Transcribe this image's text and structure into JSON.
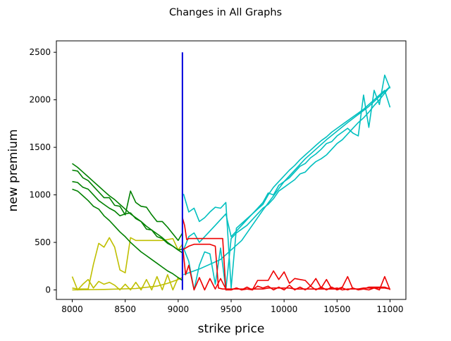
{
  "chart_data": {
    "type": "line",
    "title": "Changes in All Graphs",
    "xlabel": "strike price",
    "ylabel": "new premium",
    "xlim": [
      7850,
      11150
    ],
    "ylim": [
      -100,
      2620
    ],
    "xticks": [
      8000,
      8500,
      9000,
      9500,
      10000,
      10500,
      11000
    ],
    "yticks": [
      0,
      500,
      1000,
      1500,
      2000,
      2500
    ],
    "grid": false,
    "legend": "none",
    "vertical_line": {
      "x": 9040,
      "y_range": [
        0,
        2500
      ],
      "color": "#0000dd"
    },
    "series": [
      {
        "color": "#00bfbf",
        "x": [
          9050,
          9100,
          9150,
          9200,
          9250,
          9300,
          9350,
          9400,
          9450,
          9500,
          9550,
          9600,
          9650,
          9700,
          9750,
          9800,
          9850,
          9900,
          9950,
          10000,
          10050,
          10100,
          10150,
          10200,
          10250,
          10300,
          10350,
          10400,
          10450,
          10500,
          10550,
          10600,
          10650,
          10700,
          10750,
          10800,
          10850,
          10900,
          10950,
          11000
        ],
        "y": [
          1010,
          820,
          860,
          720,
          760,
          820,
          870,
          860,
          920,
          20,
          650,
          700,
          750,
          800,
          850,
          900,
          1000,
          1080,
          1140,
          1200,
          1260,
          1310,
          1370,
          1420,
          1470,
          1520,
          1570,
          1610,
          1660,
          1700,
          1740,
          1780,
          1820,
          1860,
          1900,
          1950,
          2000,
          2050,
          2100,
          1920
        ]
      },
      {
        "color": "#00bfbf",
        "x": [
          9050,
          9100,
          9150,
          9200,
          9250,
          9300,
          9350,
          9400,
          9450,
          9500,
          9550,
          9600,
          9650,
          9700,
          9750,
          9800,
          9850,
          9900,
          9950,
          10000,
          10050,
          10100,
          10150,
          10200,
          10250,
          10300,
          10350,
          10400,
          10450,
          10500,
          10550,
          10600,
          10650,
          10700,
          10750,
          10800,
          10850,
          10900,
          10950,
          11000
        ],
        "y": [
          420,
          560,
          600,
          500,
          560,
          620,
          680,
          740,
          800,
          560,
          620,
          680,
          740,
          800,
          860,
          920,
          1020,
          1000,
          1100,
          1140,
          1180,
          1240,
          1300,
          1330,
          1390,
          1430,
          1480,
          1540,
          1560,
          1620,
          1660,
          1700,
          1650,
          1620,
          2050,
          1710,
          2100,
          1950,
          2260,
          2120
        ]
      },
      {
        "color": "#00bfbf",
        "x": [
          9050,
          9100,
          9150,
          9200,
          9250,
          9300,
          9350,
          9400,
          9450,
          9500,
          9550,
          9600,
          9650,
          9700,
          9750,
          9800,
          9850,
          9900,
          9950,
          10000,
          10050,
          10100,
          10150,
          10200,
          10250,
          10300,
          10350,
          10400,
          10450,
          10500,
          10550,
          10600,
          10650,
          10700,
          10750,
          10800,
          10850,
          10900,
          10950,
          11000
        ],
        "y": [
          440,
          300,
          0,
          260,
          400,
          380,
          60,
          440,
          0,
          540,
          600,
          640,
          680,
          740,
          800,
          860,
          900,
          960,
          1040,
          1080,
          1120,
          1160,
          1220,
          1240,
          1300,
          1350,
          1380,
          1420,
          1480,
          1540,
          1580,
          1640,
          1700,
          1760,
          1810,
          1870,
          1940,
          2000,
          2070,
          2140
        ]
      },
      {
        "color": "#00bfbf",
        "x": [
          9050,
          9200,
          9400,
          9600,
          9800,
          10000,
          10200,
          10400,
          10600,
          10800,
          11000
        ],
        "y": [
          160,
          220,
          320,
          520,
          840,
          1140,
          1380,
          1580,
          1760,
          1930,
          2140
        ]
      },
      {
        "color": "#ee0000",
        "x": [
          9040,
          9060,
          9080,
          9100,
          9150,
          9200,
          9250,
          9300,
          9350,
          9400,
          9420,
          9450,
          9500,
          9550,
          9600,
          9650,
          9700,
          9750,
          9800,
          9850,
          9900,
          9950,
          10000,
          10050,
          10100,
          10150,
          10200,
          10250,
          10300,
          10350,
          10400,
          10450,
          10500,
          10550,
          10600,
          10650,
          10700,
          10750,
          10800,
          10850,
          10900,
          10950,
          11000
        ],
        "y": [
          760,
          680,
          530,
          540,
          540,
          540,
          540,
          540,
          540,
          540,
          540,
          0,
          0,
          20,
          0,
          10,
          0,
          100,
          100,
          100,
          200,
          110,
          190,
          70,
          120,
          110,
          100,
          40,
          120,
          20,
          110,
          10,
          20,
          0,
          10,
          10,
          10,
          20,
          20,
          20,
          20,
          20,
          10
        ]
      },
      {
        "color": "#ee0000",
        "x": [
          9040,
          9100,
          9150,
          9200,
          9250,
          9300,
          9350,
          9380,
          9420,
          9500,
          9550,
          9600,
          9650,
          9700,
          9750,
          9800,
          9850,
          9900,
          9950,
          10000,
          10050,
          10100,
          10150,
          10200,
          10250,
          10300,
          10350,
          10400,
          10450,
          10500,
          10550,
          10600,
          10650,
          10700,
          10750,
          10800,
          10850,
          10900,
          10950,
          11000
        ],
        "y": [
          420,
          460,
          480,
          480,
          480,
          480,
          460,
          20,
          10,
          10,
          10,
          10,
          10,
          10,
          10,
          10,
          20,
          20,
          20,
          20,
          20,
          10,
          10,
          10,
          10,
          10,
          10,
          10,
          10,
          10,
          30,
          140,
          10,
          10,
          10,
          30,
          30,
          30,
          30,
          10
        ]
      },
      {
        "color": "#ee0000",
        "x": [
          9040,
          9070,
          9100,
          9150,
          9200,
          9250,
          9300,
          9350,
          9400,
          9450,
          9500,
          9550,
          9600,
          9650,
          9700,
          9750,
          9800,
          9850,
          9900,
          9950,
          10000,
          10050,
          10100,
          10150,
          10200,
          10250,
          10300,
          10350,
          10400,
          10450,
          10500,
          10550,
          10600,
          10650,
          10700,
          10750,
          10800,
          10850,
          10900,
          10950,
          11000
        ],
        "y": [
          480,
          160,
          260,
          0,
          130,
          0,
          120,
          10,
          120,
          10,
          0,
          20,
          0,
          30,
          0,
          40,
          20,
          40,
          0,
          30,
          0,
          50,
          0,
          30,
          0,
          40,
          0,
          30,
          0,
          30,
          0,
          20,
          0,
          20,
          0,
          10,
          0,
          20,
          0,
          140,
          0
        ]
      },
      {
        "color": "#bfbf00",
        "x": [
          8000,
          8050,
          8100,
          8150,
          8200,
          8250,
          8300,
          8350,
          8400,
          8450,
          8500,
          8550,
          8600,
          8650,
          8700,
          8750,
          8800,
          8850,
          8900,
          8950,
          9000,
          9040
        ],
        "y": [
          20,
          10,
          10,
          10,
          270,
          490,
          450,
          550,
          450,
          210,
          180,
          550,
          520,
          520,
          520,
          520,
          520,
          520,
          530,
          540,
          420,
          480
        ]
      },
      {
        "color": "#bfbf00",
        "x": [
          8000,
          8050,
          8100,
          8150,
          8200,
          8250,
          8300,
          8350,
          8400,
          8450,
          8500,
          8550,
          8600,
          8650,
          8700,
          8750,
          8800,
          8850,
          8900,
          8950,
          9000,
          9040
        ],
        "y": [
          140,
          0,
          60,
          110,
          20,
          90,
          60,
          80,
          50,
          0,
          60,
          0,
          80,
          0,
          110,
          0,
          140,
          0,
          160,
          0,
          130,
          100
        ]
      },
      {
        "color": "#bfbf00",
        "x": [
          8000,
          8300,
          8600,
          8800,
          8900,
          9000,
          9040
        ],
        "y": [
          0,
          5,
          15,
          40,
          70,
          110,
          130
        ]
      },
      {
        "color": "#008000",
        "x": [
          8000,
          8050,
          8100,
          8150,
          8200,
          8250,
          8300,
          8350,
          8400,
          8450,
          8500,
          8550,
          8600,
          8650,
          8700,
          8750,
          8800,
          8850,
          8900,
          8950,
          9000,
          9040
        ],
        "y": [
          1330,
          1290,
          1240,
          1190,
          1140,
          1090,
          1040,
          990,
          950,
          900,
          850,
          800,
          760,
          720,
          670,
          630,
          590,
          550,
          500,
          460,
          420,
          390
        ]
      },
      {
        "color": "#008000",
        "x": [
          8000,
          8050,
          8100,
          8150,
          8200,
          8250,
          8300,
          8350,
          8400,
          8450,
          8500,
          8550,
          8600,
          8650,
          8700,
          8750,
          8800,
          8850,
          8900,
          8950,
          9000,
          9040
        ],
        "y": [
          1260,
          1250,
          1180,
          1150,
          1090,
          1030,
          970,
          970,
          890,
          880,
          790,
          1040,
          920,
          880,
          870,
          790,
          720,
          720,
          660,
          590,
          520,
          600
        ]
      },
      {
        "color": "#008000",
        "x": [
          8000,
          8050,
          8100,
          8150,
          8200,
          8250,
          8300,
          8350,
          8400,
          8450,
          8500,
          8550,
          8600,
          8650,
          8700,
          8750,
          8800,
          8850,
          8900,
          8950,
          9000,
          9040
        ],
        "y": [
          1140,
          1130,
          1080,
          1060,
          1000,
          940,
          900,
          860,
          830,
          780,
          800,
          810,
          750,
          720,
          640,
          630,
          560,
          540,
          490,
          460,
          420,
          430
        ]
      },
      {
        "color": "#008000",
        "x": [
          8000,
          8050,
          8100,
          8150,
          8200,
          8250,
          8300,
          8350,
          8400,
          8450,
          8500,
          8550,
          8600,
          8650,
          8700,
          8750,
          8800,
          8850,
          8900,
          8950,
          9000,
          9040
        ],
        "y": [
          1060,
          1040,
          990,
          940,
          880,
          850,
          780,
          730,
          670,
          610,
          560,
          500,
          450,
          400,
          360,
          320,
          280,
          240,
          200,
          170,
          130,
          100
        ]
      }
    ]
  }
}
